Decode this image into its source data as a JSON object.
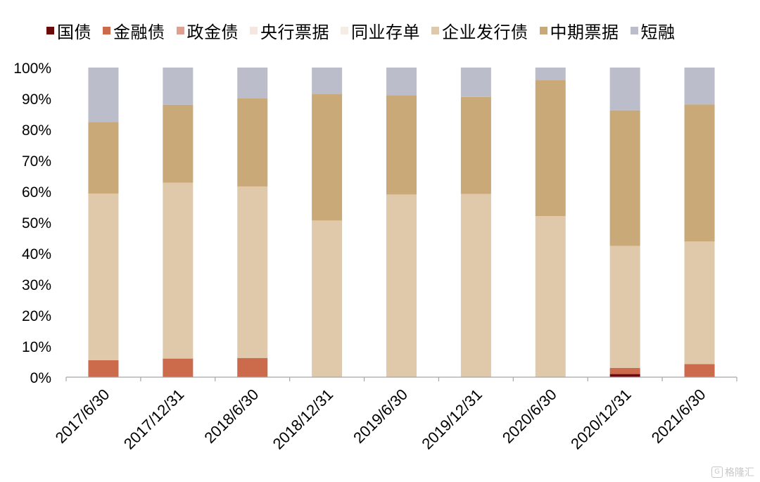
{
  "chart_data": {
    "type": "bar",
    "stacked": true,
    "categories": [
      "2017/6/30",
      "2017/12/31",
      "2018/6/30",
      "2018/12/31",
      "2019/6/30",
      "2019/12/31",
      "2020/6/30",
      "2020/12/31",
      "2021/6/30"
    ],
    "series": [
      {
        "name": "国债",
        "color": "#6b0a0a",
        "values": [
          0,
          0,
          0,
          0,
          0,
          0,
          0,
          1.0,
          0
        ]
      },
      {
        "name": "金融债",
        "color": "#cc6a4c",
        "values": [
          5.5,
          6.0,
          6.2,
          0,
          0,
          0,
          0,
          2.0,
          4.2
        ]
      },
      {
        "name": "政金债",
        "color": "#e0a090",
        "values": [
          0,
          0,
          0,
          0,
          0,
          0,
          0,
          0,
          0
        ]
      },
      {
        "name": "央行票据",
        "color": "#f5e6df",
        "values": [
          0,
          0,
          0,
          0,
          0,
          0,
          0,
          0,
          0
        ]
      },
      {
        "name": "同业存单",
        "color": "#f3ede6",
        "values": [
          0,
          0,
          0,
          0,
          0,
          0,
          0,
          0,
          0
        ]
      },
      {
        "name": "企业发行债",
        "color": "#e0c9aa",
        "values": [
          53.8,
          56.8,
          55.4,
          50.6,
          59.0,
          59.2,
          52.0,
          39.4,
          39.6
        ]
      },
      {
        "name": "中期票据",
        "color": "#c9a978",
        "values": [
          23.1,
          25.2,
          28.4,
          40.9,
          32.1,
          31.3,
          43.9,
          43.8,
          44.3
        ]
      },
      {
        "name": "短融",
        "color": "#bbbdca",
        "values": [
          17.6,
          12.0,
          10.0,
          8.5,
          8.9,
          9.5,
          4.1,
          13.8,
          11.9
        ]
      }
    ],
    "y_ticks": [
      "0%",
      "10%",
      "20%",
      "30%",
      "40%",
      "50%",
      "60%",
      "70%",
      "80%",
      "90%",
      "100%"
    ],
    "ylim": [
      0,
      100
    ],
    "legend_position": "top",
    "grid": false
  },
  "watermark": {
    "icon": "G",
    "text": "格隆汇"
  }
}
